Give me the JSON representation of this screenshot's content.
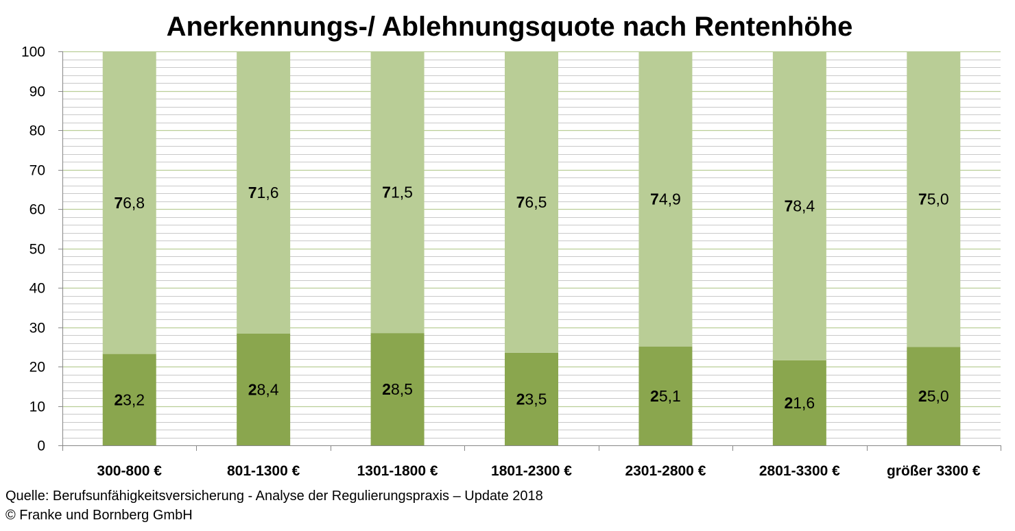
{
  "chart_data": {
    "type": "bar",
    "stacked": true,
    "title": "Anerkennungs-/ Ablehnungsquote nach Rentenhöhe",
    "xlabel": "",
    "ylabel": "",
    "ylim": [
      0,
      100
    ],
    "yticks": [
      0,
      10,
      20,
      30,
      40,
      50,
      60,
      70,
      80,
      90,
      100
    ],
    "grid": true,
    "categories": [
      "300-800 €",
      "801-1300 €",
      "1301-1800 €",
      "1801-2300 €",
      "2301-2800 €",
      "2801-3300 €",
      "größer 3300 €"
    ],
    "series": [
      {
        "values": [
          23.2,
          28.4,
          28.5,
          23.5,
          25.1,
          21.6,
          25.0
        ],
        "labels": [
          "23,2",
          "28,4",
          "28,5",
          "23,5",
          "25,1",
          "21,6",
          "25,0"
        ],
        "color": "#8aa64e"
      },
      {
        "values": [
          76.8,
          71.6,
          71.5,
          76.5,
          74.9,
          78.4,
          75.0
        ],
        "labels": [
          "76,8",
          "71,6",
          "71,5",
          "76,5",
          "74,9",
          "78,4",
          "75,0"
        ],
        "color": "#b9cd96"
      }
    ]
  },
  "footer": {
    "source": "Quelle: Berufsunfähigkeitsversicherung - Analyse der Regulierungspraxis – Update 2018",
    "copyright": "© Franke und Bornberg GmbH"
  },
  "colors": {
    "major_grid": "#b9cd96",
    "minor_grid": "#c8c8c8",
    "axis": "#868686"
  }
}
